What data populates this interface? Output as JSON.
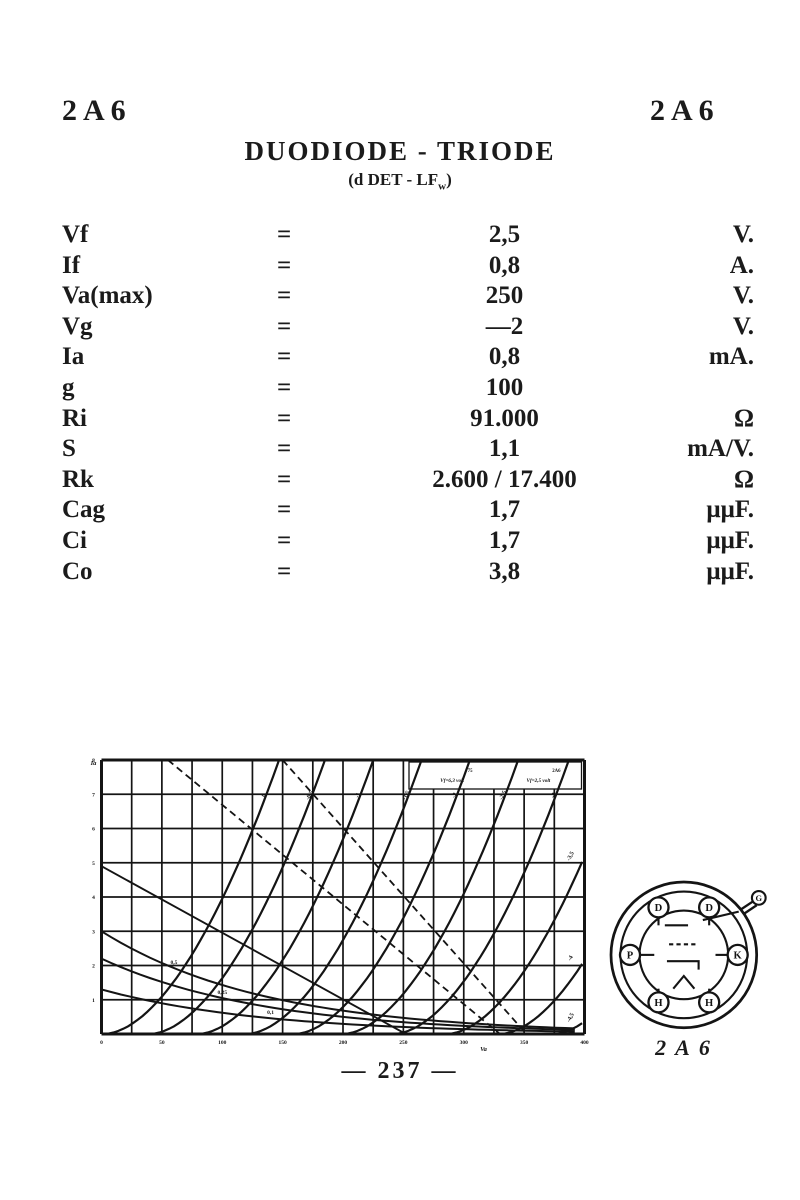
{
  "page": {
    "tube_left": "2A6",
    "tube_right": "2A6",
    "title": "DUODIODE - TRIODE",
    "subtitle_prefix": "(d DET - LF",
    "subtitle_sub": "w",
    "subtitle_suffix": ")",
    "page_number": "— 237 —",
    "colors": {
      "ink": "#1b1b1b",
      "paper": "#ffffff"
    }
  },
  "specs": {
    "rows": [
      {
        "param": "Vf",
        "eq": "=",
        "value": "2,5",
        "unit": "V."
      },
      {
        "param": "If",
        "eq": "=",
        "value": "0,8",
        "unit": "A."
      },
      {
        "param": "Va(max)",
        "eq": "=",
        "value": "250",
        "unit": "V."
      },
      {
        "param": "Vg",
        "eq": "=",
        "value": "—2",
        "unit": "V."
      },
      {
        "param": "Ia",
        "eq": "=",
        "value": "0,8",
        "unit": "mA."
      },
      {
        "param": "g",
        "eq": "=",
        "value": "100",
        "unit": ""
      },
      {
        "param": "Ri",
        "eq": "=",
        "value": "91.000",
        "unit": "Ω"
      },
      {
        "param": "S",
        "eq": "=",
        "value": "1,1",
        "unit": "mA/V."
      },
      {
        "param": "Rk",
        "eq": "=",
        "value": "2.600 / 17.400",
        "unit": "Ω"
      },
      {
        "param": "Cag",
        "eq": "=",
        "value": "1,7",
        "unit": "μμF."
      },
      {
        "param": "Ci",
        "eq": "=",
        "value": "1,7",
        "unit": "μμF."
      },
      {
        "param": "Co",
        "eq": "=",
        "value": "3,8",
        "unit": "μμF."
      }
    ]
  },
  "chart_data": {
    "type": "line",
    "description": "Triode section anode characteristics: Ia (mA) versus Va (V) for grid voltages 0 to -4,5 V, with dashed auxiliary lines and low-power curves",
    "x_axis": {
      "label": "Va",
      "min": 0,
      "max": 400,
      "ticks": [
        "0",
        "50",
        "100",
        "150",
        "200",
        "250",
        "300",
        "350",
        "400"
      ]
    },
    "y_axis": {
      "label": "Ia",
      "min": 0,
      "max": 8,
      "ticks": [
        "1",
        "2",
        "3",
        "4",
        "5",
        "6",
        "7",
        "8"
      ]
    },
    "grid": {
      "columns": 16,
      "rows": 8
    },
    "legend": [
      {
        "vf": "Vf=6,3 volt",
        "tube": "75"
      },
      {
        "vf": "Vf=2,5 volt",
        "tube": "2A6"
      }
    ],
    "series": [
      {
        "vg": "0",
        "foot_va": 2
      },
      {
        "vg": "-0,5",
        "foot_va": 40
      },
      {
        "vg": "-1",
        "foot_va": 80
      },
      {
        "vg": "-1,5",
        "foot_va": 120
      },
      {
        "vg": "-2",
        "foot_va": 160
      },
      {
        "vg": "-2,5",
        "foot_va": 200
      },
      {
        "vg": "-3",
        "foot_va": 242
      },
      {
        "vg": "-3,5",
        "foot_va": 286
      },
      {
        "vg": "-4",
        "foot_va": 330
      },
      {
        "vg": "-4,5",
        "foot_va": 374
      }
    ],
    "dashed_lines": [
      {
        "from": [
          55,
          8
        ],
        "to": [
          330,
          0
        ]
      },
      {
        "from": [
          150,
          8
        ],
        "to": [
          352,
          0
        ]
      }
    ],
    "load_line": {
      "from": [
        0,
        4.9
      ],
      "to": [
        252,
        0
      ]
    },
    "lower_curves": [
      {
        "label": "0,5",
        "start_ma": 3.0,
        "label_va": 60
      },
      {
        "label": "0,25",
        "start_ma": 2.2,
        "label_va": 100
      },
      {
        "label": "0,1",
        "start_ma": 1.3,
        "label_va": 140
      }
    ]
  },
  "socket": {
    "pins": [
      "D",
      "D",
      "P",
      "K",
      "H",
      "H"
    ],
    "top_cap": "G",
    "caption": "2A6"
  }
}
